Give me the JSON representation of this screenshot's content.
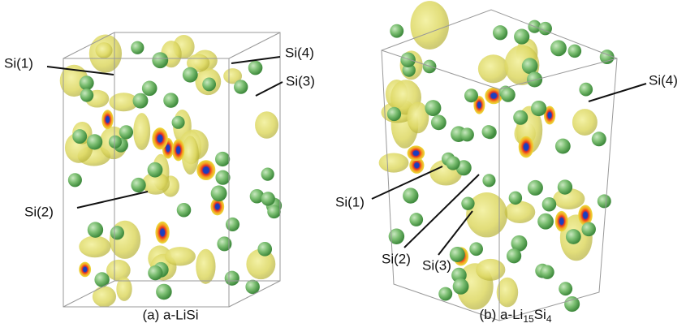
{
  "panels": [
    {
      "caption": "(a) a-LiSi",
      "labels": [
        "Si(1)",
        "Si(4)",
        "Si(3)",
        "Si(2)"
      ]
    },
    {
      "caption": [
        "(b) a-Li",
        "15",
        "Si",
        "4"
      ],
      "labels": [
        "Si(4)",
        "Si(1)",
        "Si(2)",
        "Si(3)"
      ]
    }
  ]
}
